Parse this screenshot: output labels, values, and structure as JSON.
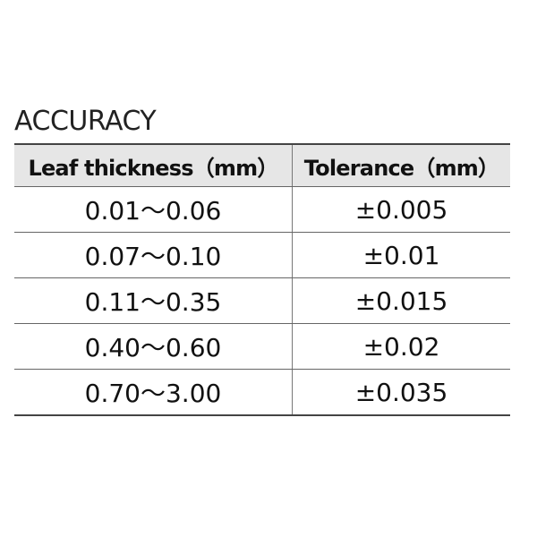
{
  "title": "ACCURACY",
  "table": {
    "header": [
      "Leaf thickness（mm）",
      "Tolerance（mm）"
    ],
    "rows": [
      [
        "0.01～0.06",
        "±0.005"
      ],
      [
        "0.07～0.10",
        "±0.01"
      ],
      [
        "0.11～0.35",
        "±0.015"
      ],
      [
        "0.40～0.60",
        "±0.02"
      ],
      [
        "0.70～3.00",
        "±0.035"
      ]
    ]
  }
}
